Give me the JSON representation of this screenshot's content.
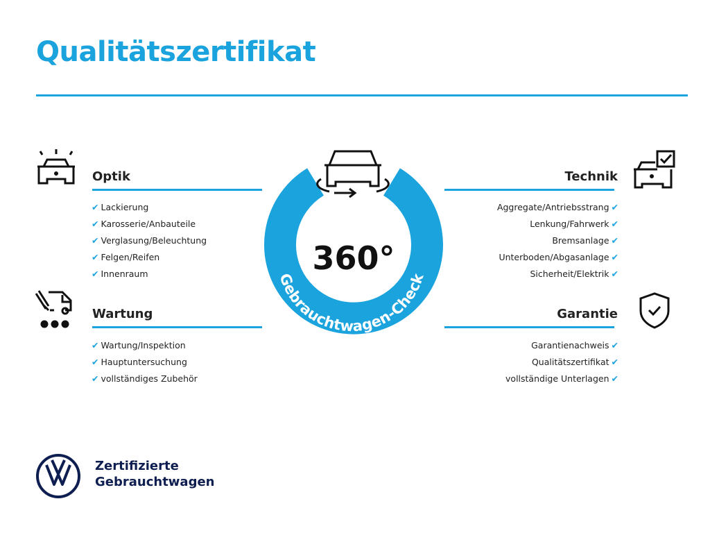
{
  "title": "Qualitätszertifikat",
  "center": {
    "degrees": "360°",
    "ring_text": "Gebrauchtwagen-Check",
    "ring_color": "#1ba3de"
  },
  "sections": {
    "optik": {
      "title": "Optik",
      "items": [
        "Lackierung",
        "Karosserie/Anbauteile",
        "Verglasung/Beleuchtung",
        "Felgen/Reifen",
        "Innenraum"
      ]
    },
    "wartung": {
      "title": "Wartung",
      "items": [
        "Wartung/Inspektion",
        "Hauptuntersuchung",
        "vollständiges Zubehör"
      ]
    },
    "technik": {
      "title": "Technik",
      "items": [
        "Aggregate/Antriebsstrang",
        "Lenkung/Fahrwerk",
        "Bremsanlage",
        "Unterboden/Abgasanlage",
        "Sicherheit/Elektrik"
      ]
    },
    "garantie": {
      "title": "Garantie",
      "items": [
        "Garantienachweis",
        "Qualitätszertifikat",
        "vollständige Unterlagen"
      ]
    }
  },
  "check_glyph": "✔",
  "brand": {
    "line1": "Zertifizierte",
    "line2": "Gebrauchtwagen",
    "logo": "VW"
  }
}
